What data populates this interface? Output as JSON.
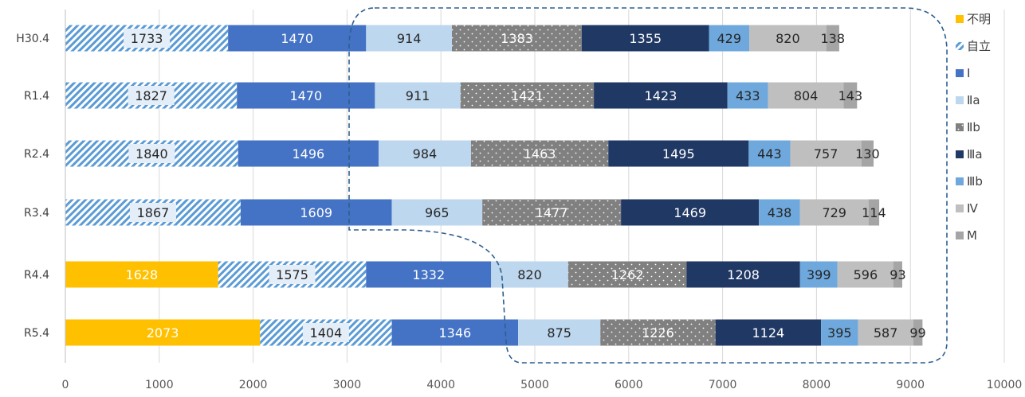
{
  "chart_data": {
    "type": "bar",
    "orientation": "horizontal",
    "stacked": true,
    "categories": [
      "H30.4",
      "R1.4",
      "R2.4",
      "R3.4",
      "R4.4",
      "R5.4"
    ],
    "series": [
      {
        "name": "不明",
        "color": "#FFC000",
        "pattern": "solid",
        "values": [
          null,
          null,
          null,
          null,
          1628,
          2073
        ]
      },
      {
        "name": "自立",
        "color": "#5B9BD5",
        "pattern": "hatch",
        "values": [
          1733,
          1827,
          1840,
          1867,
          1575,
          1404
        ]
      },
      {
        "name": "Ⅰ",
        "color": "#4472C4",
        "pattern": "solid",
        "values": [
          1470,
          1470,
          1496,
          1609,
          1332,
          1346
        ]
      },
      {
        "name": "Ⅱa",
        "color": "#BDD7EE",
        "pattern": "solid",
        "values": [
          914,
          911,
          984,
          965,
          820,
          875
        ]
      },
      {
        "name": "Ⅱb",
        "color": "#808080",
        "pattern": "dots",
        "values": [
          1383,
          1421,
          1463,
          1477,
          1262,
          1226
        ]
      },
      {
        "name": "Ⅲa",
        "color": "#203864",
        "pattern": "solid",
        "values": [
          1355,
          1423,
          1495,
          1469,
          1208,
          1124
        ]
      },
      {
        "name": "Ⅲb",
        "color": "#6FA8DC",
        "pattern": "solid",
        "values": [
          429,
          433,
          443,
          438,
          399,
          395
        ]
      },
      {
        "name": "Ⅳ",
        "color": "#BFBFBF",
        "pattern": "solid",
        "values": [
          820,
          804,
          757,
          729,
          596,
          587
        ]
      },
      {
        "name": "M",
        "color": "#A5A5A5",
        "pattern": "solid",
        "values": [
          138,
          143,
          130,
          114,
          93,
          99
        ]
      }
    ],
    "xlim": [
      0,
      10000
    ],
    "xticks": [
      0,
      1000,
      2000,
      3000,
      4000,
      5000,
      6000,
      7000,
      8000,
      9000,
      10000
    ],
    "grid": true,
    "legend": "right",
    "annotations": [
      "dashed outline around the Ⅱa–M segments"
    ]
  }
}
